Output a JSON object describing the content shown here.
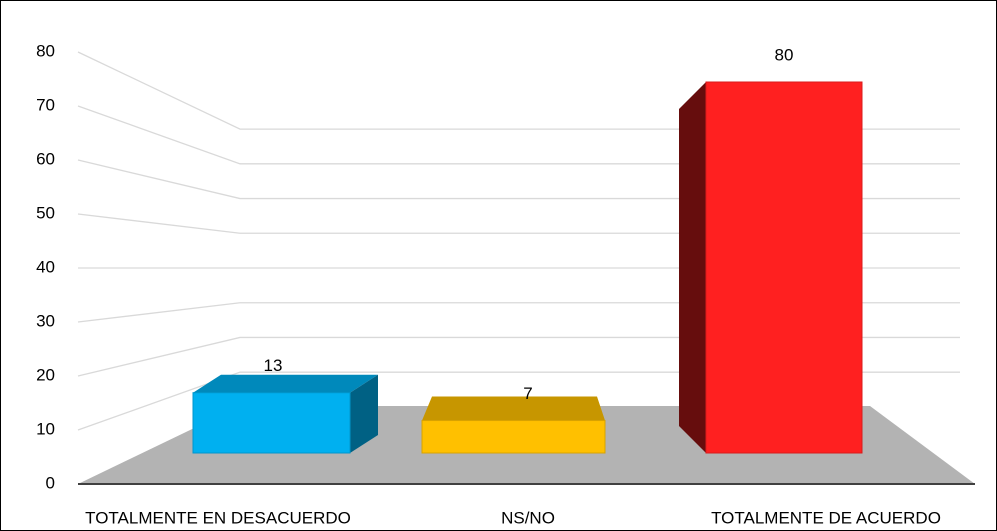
{
  "chart_data": {
    "type": "bar3d",
    "categories": [
      "TOTALMENTE EN DESACUERDO",
      "NS/NO",
      "TOTALMENTE DE ACUERDO"
    ],
    "series": [
      {
        "name": null,
        "colors": [
          "#00b0f0",
          "#ffc000",
          "#ff2020"
        ],
        "values": [
          13,
          7,
          80
        ]
      }
    ],
    "ylim": [
      0,
      80
    ],
    "yticks": [
      0,
      10,
      20,
      30,
      40,
      50,
      60,
      70,
      80
    ],
    "grid": true
  }
}
